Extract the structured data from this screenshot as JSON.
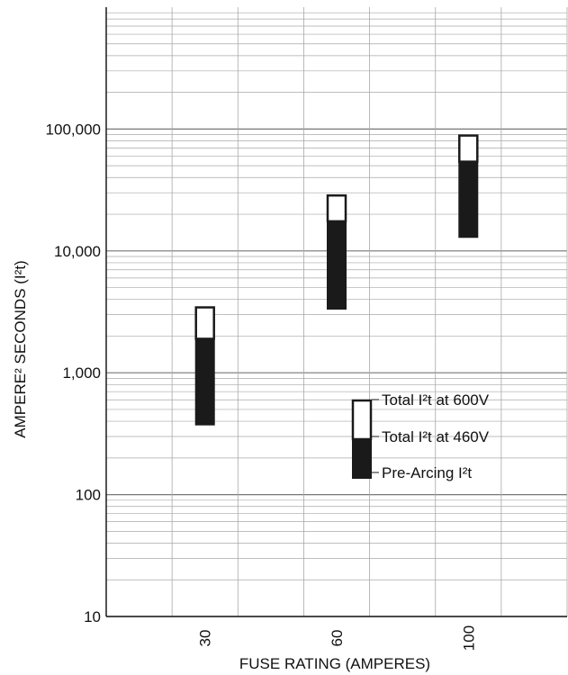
{
  "chart_data": {
    "type": "bar",
    "subtype": "floating-range-bars",
    "xlabel": "FUSE RATING (AMPERES)",
    "ylabel": "AMPERE² SECONDS (I²t)",
    "y_scale": "log",
    "ylim": [
      10,
      1000000
    ],
    "y_tick_labels": [
      "10",
      "100",
      "1,000",
      "10,000",
      "100,000"
    ],
    "y_tick_values": [
      10,
      100,
      1000,
      10000,
      100000
    ],
    "x_columns": 7,
    "grid": true,
    "categories": [
      "30",
      "60",
      "100"
    ],
    "category_columns": [
      1,
      3,
      5
    ],
    "series": [
      {
        "name": "Pre-Arcing I²t",
        "fill": "#1a1a1a",
        "low": [
          370,
          3300,
          12800
        ],
        "high": [
          1900,
          17500,
          54000
        ]
      },
      {
        "name": "Total I²t at 460V",
        "fill": "#1a1a1a",
        "values": [
          1900,
          17500,
          54000
        ]
      },
      {
        "name": "Total I²t at 600V",
        "fill": "#ffffff",
        "low": [
          1900,
          17500,
          54000
        ],
        "high": [
          3500,
          29000,
          90000
        ]
      }
    ],
    "legend": {
      "placement": "center-right",
      "labels": [
        "Total I²t at 600V",
        "Total I²t at 460V",
        "Pre-Arcing I²t"
      ]
    },
    "colors": {
      "grid": "#a8a8a8",
      "axis": "#1a1a1a",
      "bar_dark": "#1a1a1a",
      "bar_light": "#ffffff"
    }
  }
}
